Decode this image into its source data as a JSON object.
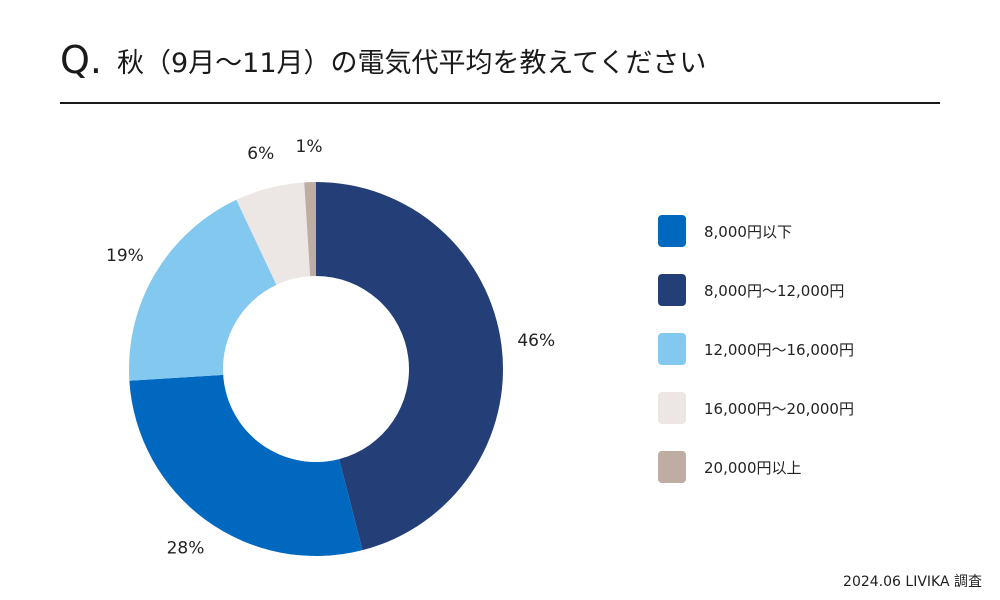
{
  "question": {
    "mark": "Q.",
    "text": "秋（9月〜11月）の電気代平均を教えてください"
  },
  "source_note": "2024.06 LIVIKA 調査",
  "chart_data": {
    "type": "pie",
    "donut": true,
    "start_angle_deg": 0,
    "direction": "clockwise",
    "legend_position": "right",
    "slices": [
      {
        "name": "8,000円〜12,000円",
        "value": 46,
        "label": "46%",
        "color": "#243f77"
      },
      {
        "name": "8,000円以下",
        "value": 28,
        "label": "28%",
        "color": "#0068bf"
      },
      {
        "name": "12,000円〜16,000円",
        "value": 19,
        "label": "19%",
        "color": "#82c8ef"
      },
      {
        "name": "16,000円〜20,000円",
        "value": 6,
        "label": "6%",
        "color": "#ece7e4"
      },
      {
        "name": "20,000円以上",
        "value": 1,
        "label": "1%",
        "color": "#bfada4"
      }
    ],
    "legend": [
      {
        "label": "8,000円以下",
        "color": "#0068bf"
      },
      {
        "label": "8,000円〜12,000円",
        "color": "#243f77"
      },
      {
        "label": "12,000円〜16,000円",
        "color": "#82c8ef"
      },
      {
        "label": "16,000円〜20,000円",
        "color": "#ece7e4"
      },
      {
        "label": "20,000円以上",
        "color": "#bfada4"
      }
    ]
  }
}
